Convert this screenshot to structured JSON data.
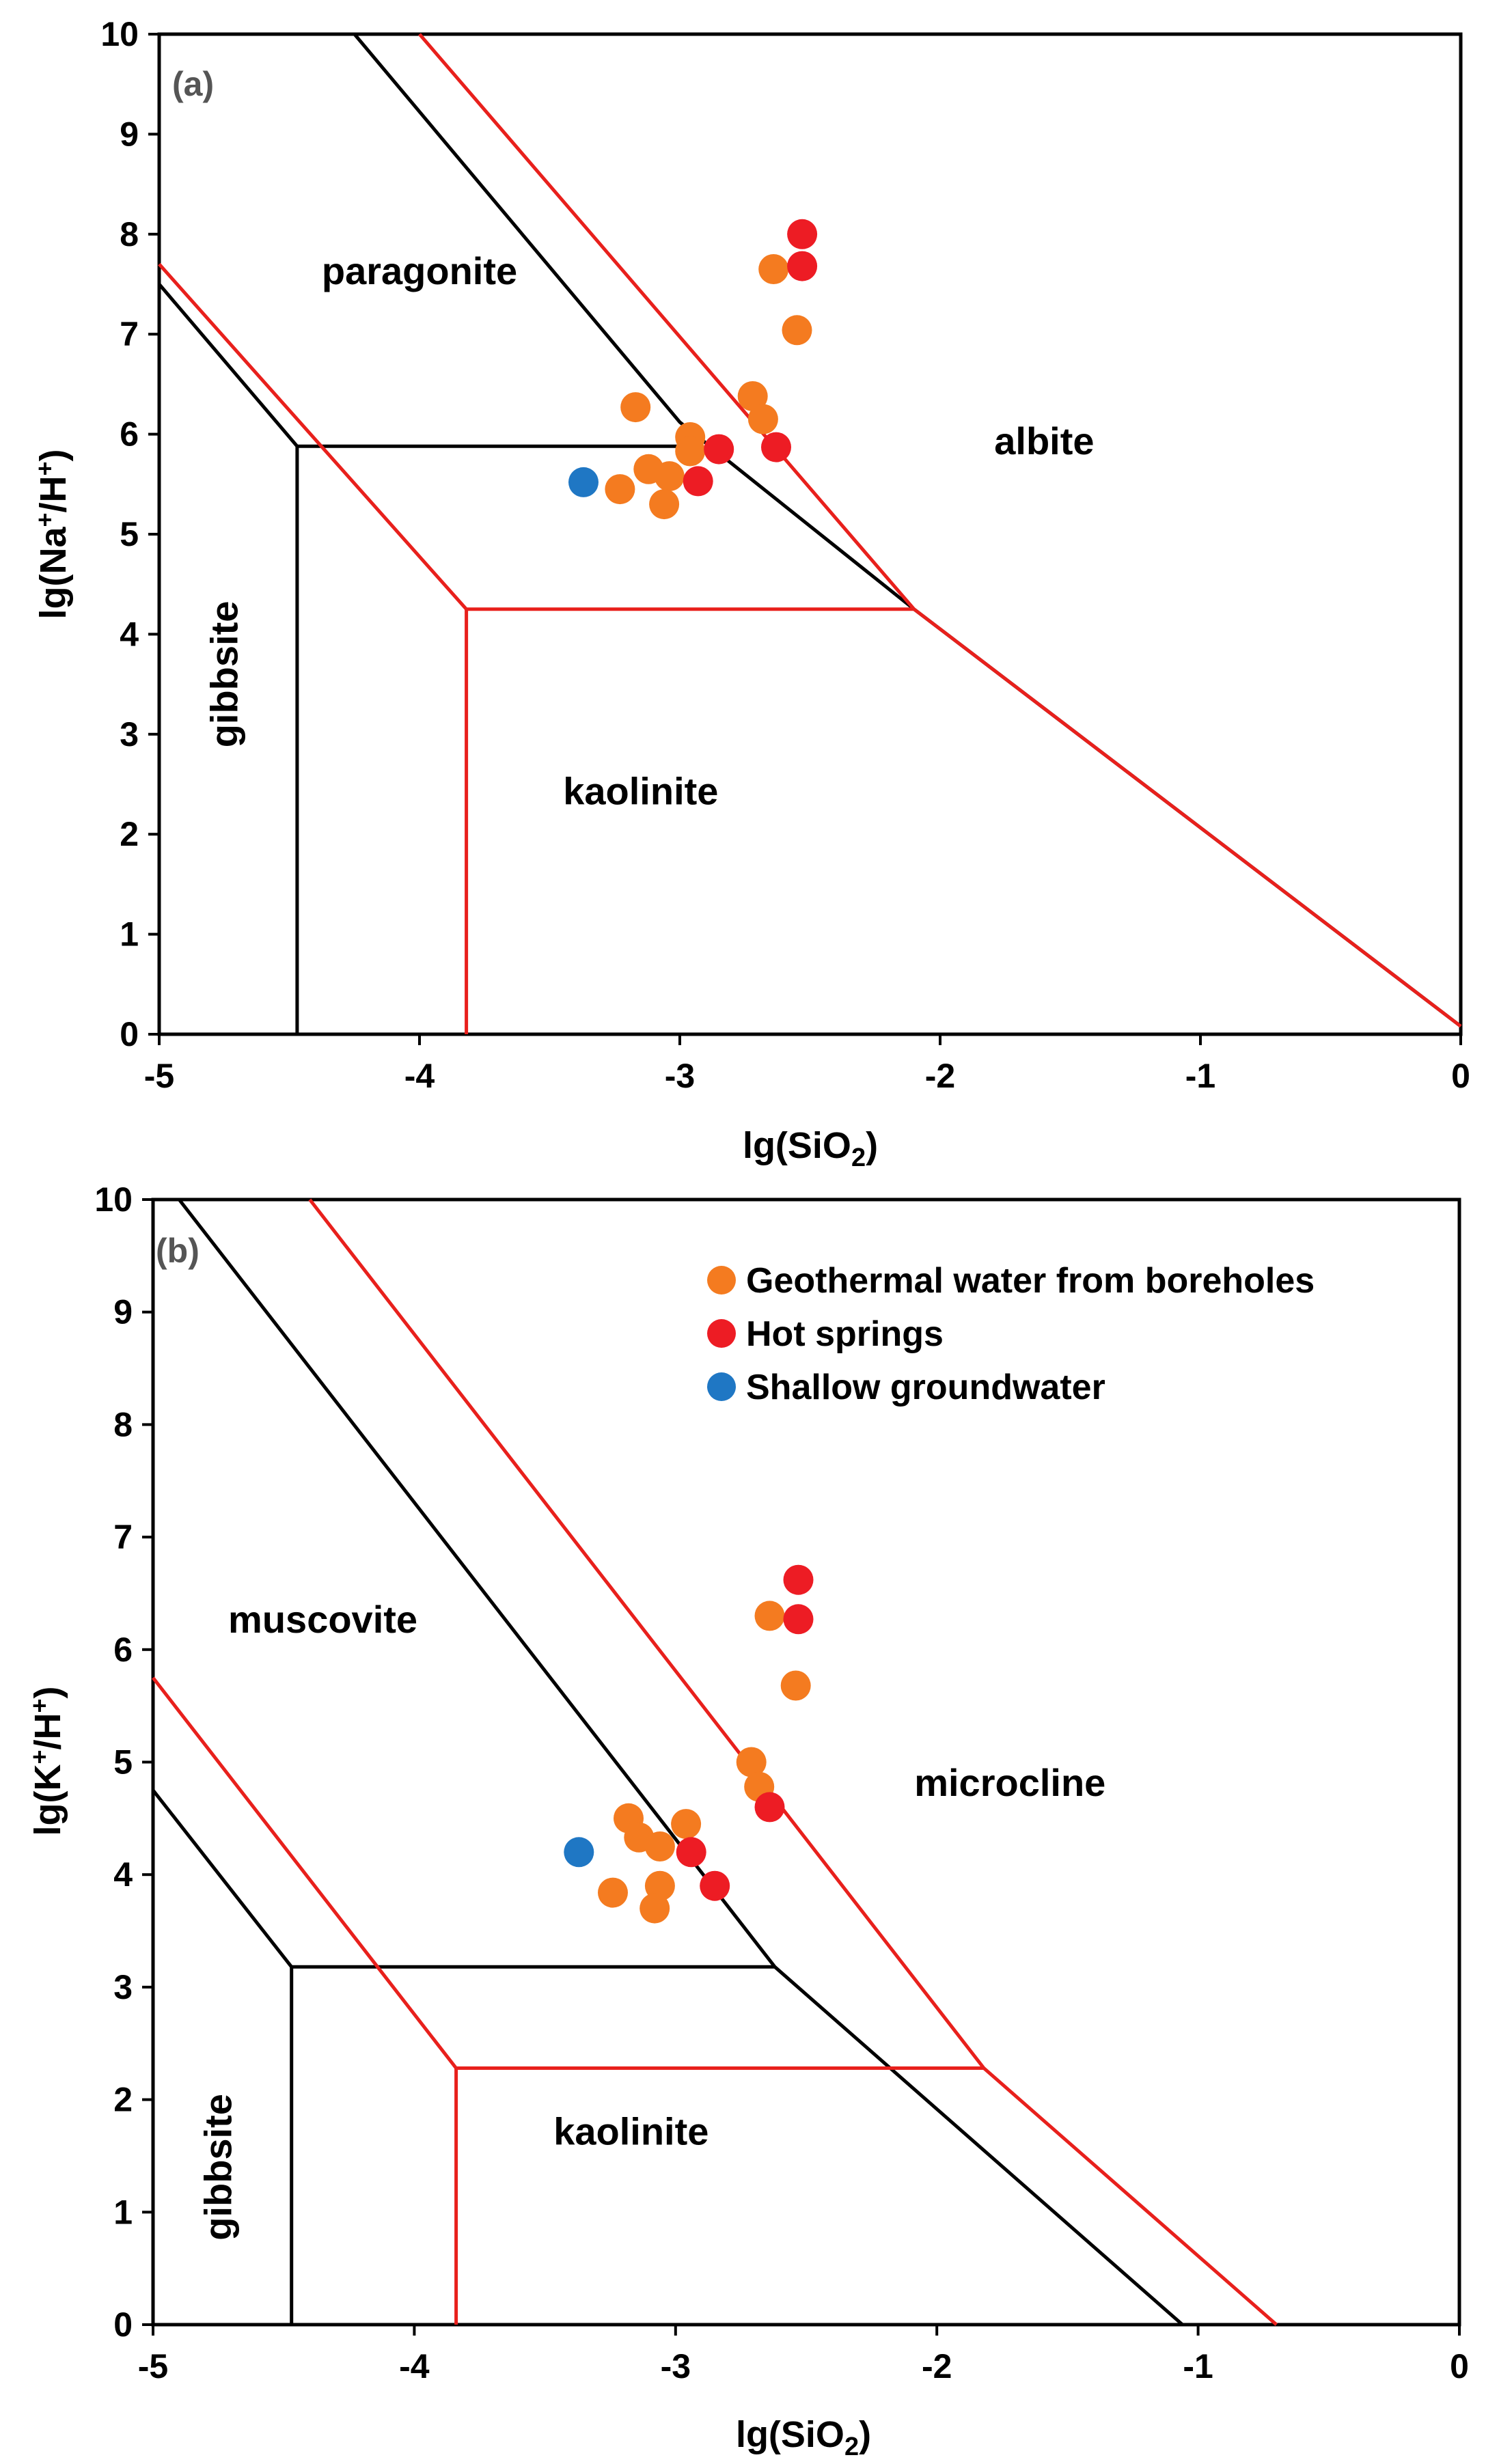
{
  "chart_data": [
    {
      "type": "scatter",
      "panel_label": "(a)",
      "xlabel": "lg(SiO2)",
      "ylabel": "lg(Na+/H+)",
      "xlim": [
        -5,
        0
      ],
      "ylim": [
        0,
        10
      ],
      "x_ticks": [
        "-5",
        "-4",
        "-3",
        "-2",
        "-1",
        "0"
      ],
      "y_ticks": [
        "0",
        "1",
        "2",
        "3",
        "4",
        "5",
        "6",
        "7",
        "8",
        "9",
        "10"
      ],
      "fields": [
        {
          "label": "paragonite",
          "x": -4.0,
          "y": 7.5
        },
        {
          "label": "albite",
          "x": -1.6,
          "y": 5.8
        },
        {
          "label": "gibbsite",
          "x": -4.7,
          "y": 3.6,
          "rotated": true
        },
        {
          "label": "kaolinite",
          "x": -3.15,
          "y": 2.3
        }
      ],
      "boundaries": [
        {
          "color": "#000000",
          "points": [
            [
              -4.47,
              0
            ],
            [
              -4.47,
              5.88
            ],
            [
              -3.0,
              5.88
            ]
          ]
        },
        {
          "color": "#000000",
          "points": [
            [
              -5.0,
              7.5
            ],
            [
              -4.47,
              5.88
            ]
          ]
        },
        {
          "color": "#000000",
          "points": [
            [
              -4.25,
              10.0
            ],
            [
              -3.0,
              6.12
            ],
            [
              -2.1,
              4.25
            ],
            [
              0,
              0.08
            ]
          ]
        },
        {
          "color": "#e8201c",
          "points": [
            [
              -5.0,
              7.7
            ],
            [
              -3.82,
              4.25
            ],
            [
              -2.1,
              4.25
            ]
          ]
        },
        {
          "color": "#e8201c",
          "points": [
            [
              -3.82,
              0
            ],
            [
              -3.82,
              4.25
            ]
          ]
        },
        {
          "color": "#e8201c",
          "points": [
            [
              -4.0,
              10.0
            ],
            [
              -2.1,
              4.25
            ],
            [
              0,
              0.08
            ]
          ]
        }
      ],
      "series": [
        {
          "name": "Geothermal water from boreholes",
          "color": "#f47b20",
          "points": [
            [
              -3.17,
              6.27
            ],
            [
              -2.96,
              5.97
            ],
            [
              -2.96,
              5.83
            ],
            [
              -3.12,
              5.65
            ],
            [
              -3.04,
              5.58
            ],
            [
              -3.23,
              5.45
            ],
            [
              -3.06,
              5.3
            ],
            [
              -2.72,
              6.38
            ],
            [
              -2.68,
              6.15
            ],
            [
              -2.64,
              7.65
            ],
            [
              -2.55,
              7.04
            ]
          ]
        },
        {
          "name": "Hot springs",
          "color": "#ed1c24",
          "points": [
            [
              -2.53,
              8.0
            ],
            [
              -2.53,
              7.68
            ],
            [
              -2.85,
              5.85
            ],
            [
              -2.63,
              5.87
            ],
            [
              -2.93,
              5.53
            ]
          ]
        },
        {
          "name": "Shallow groundwater",
          "color": "#1f77c4",
          "points": [
            [
              -3.37,
              5.52
            ]
          ]
        }
      ]
    },
    {
      "type": "scatter",
      "panel_label": "(b)",
      "xlabel": "lg(SiO2)",
      "ylabel": "lg(K+/H+)",
      "xlim": [
        -5,
        0
      ],
      "ylim": [
        0,
        10
      ],
      "x_ticks": [
        "-5",
        "-4",
        "-3",
        "-2",
        "-1",
        "0"
      ],
      "y_ticks": [
        "0",
        "1",
        "2",
        "3",
        "4",
        "5",
        "6",
        "7",
        "8",
        "9",
        "10"
      ],
      "legend": {
        "position": "top-right",
        "entries": [
          "Geothermal water from boreholes",
          "Hot springs",
          "Shallow groundwater"
        ]
      },
      "fields": [
        {
          "label": "muscovite",
          "x": -4.35,
          "y": 6.15
        },
        {
          "label": "microcline",
          "x": -1.72,
          "y": 4.7
        },
        {
          "label": "gibbsite",
          "x": -4.7,
          "y": 1.4,
          "rotated": true
        },
        {
          "label": "kaolinite",
          "x": -3.17,
          "y": 1.6
        }
      ],
      "boundaries": [
        {
          "color": "#000000",
          "points": [
            [
              -4.47,
              0
            ],
            [
              -4.47,
              3.18
            ],
            [
              -2.62,
              3.18
            ]
          ]
        },
        {
          "color": "#000000",
          "points": [
            [
              -5.0,
              4.75
            ],
            [
              -4.47,
              3.18
            ]
          ]
        },
        {
          "color": "#000000",
          "points": [
            [
              -4.9,
              10.0
            ],
            [
              -2.62,
              3.18
            ],
            [
              -1.06,
              0
            ]
          ]
        },
        {
          "color": "#e8201c",
          "points": [
            [
              -5.0,
              5.75
            ],
            [
              -3.84,
              2.28
            ],
            [
              -1.82,
              2.28
            ]
          ]
        },
        {
          "color": "#e8201c",
          "points": [
            [
              -3.84,
              0
            ],
            [
              -3.84,
              2.28
            ]
          ]
        },
        {
          "color": "#e8201c",
          "points": [
            [
              -4.4,
              10.0
            ],
            [
              -1.82,
              2.28
            ],
            [
              -0.7,
              0
            ]
          ]
        }
      ],
      "series": [
        {
          "name": "Geothermal water from boreholes",
          "color": "#f47b20",
          "points": [
            [
              -3.18,
              4.5
            ],
            [
              -3.14,
              4.33
            ],
            [
              -3.06,
              4.25
            ],
            [
              -2.96,
              4.45
            ],
            [
              -3.06,
              3.9
            ],
            [
              -3.24,
              3.84
            ],
            [
              -3.08,
              3.7
            ],
            [
              -2.71,
              5.0
            ],
            [
              -2.68,
              4.78
            ],
            [
              -2.64,
              6.3
            ],
            [
              -2.54,
              5.68
            ]
          ]
        },
        {
          "name": "Hot springs",
          "color": "#ed1c24",
          "points": [
            [
              -2.53,
              6.62
            ],
            [
              -2.53,
              6.27
            ],
            [
              -2.64,
              4.6
            ],
            [
              -2.94,
              4.2
            ],
            [
              -2.85,
              3.9
            ]
          ]
        },
        {
          "name": "Shallow groundwater",
          "color": "#1f77c4",
          "points": [
            [
              -3.37,
              4.2
            ]
          ]
        }
      ]
    }
  ]
}
